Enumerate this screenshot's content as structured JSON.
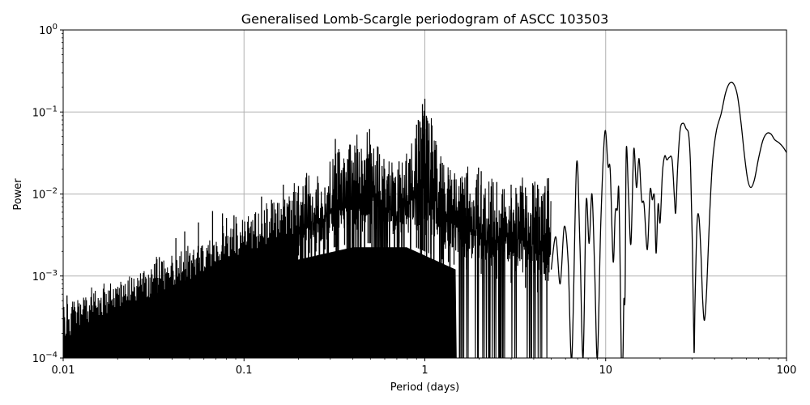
{
  "chart_data": {
    "type": "line",
    "title": "Generalised Lomb-Scargle periodogram of ASCC 103503",
    "xlabel": "Period (days)",
    "ylabel": "Power",
    "xscale": "log",
    "yscale": "log",
    "xlim": [
      0.01,
      100
    ],
    "ylim": [
      0.0001,
      1
    ],
    "grid": true,
    "legend": null,
    "line_color": "#000000",
    "grid_color": "#b0b0b0",
    "x_ticks": [
      {
        "value": 0.01,
        "label": "0.01"
      },
      {
        "value": 0.1,
        "label": "0.1"
      },
      {
        "value": 1,
        "label": "1"
      },
      {
        "value": 10,
        "label": "10"
      },
      {
        "value": 100,
        "label": "100"
      }
    ],
    "y_ticks": [
      {
        "value": 0.0001,
        "base": "10",
        "exp": "−4"
      },
      {
        "value": 0.001,
        "base": "10",
        "exp": "−3"
      },
      {
        "value": 0.01,
        "base": "10",
        "exp": "−2"
      },
      {
        "value": 0.1,
        "base": "10",
        "exp": "−1"
      },
      {
        "value": 1,
        "base": "10",
        "exp": "0"
      }
    ],
    "notable_peaks": [
      {
        "period": 0.0105,
        "power": 0.00058
      },
      {
        "period": 0.033,
        "power": 0.0016
      },
      {
        "period": 0.063,
        "power": 0.0045
      },
      {
        "period": 0.16,
        "power": 0.013
      },
      {
        "period": 0.2,
        "power": 0.0125
      },
      {
        "period": 0.25,
        "power": 0.0105
      },
      {
        "period": 0.33,
        "power": 0.047
      },
      {
        "period": 0.5,
        "power": 0.062
      },
      {
        "period": 0.97,
        "power": 0.12
      },
      {
        "period": 1.0,
        "power": 0.145
      },
      {
        "period": 1.98,
        "power": 0.02
      },
      {
        "period": 6.9,
        "power": 0.023
      },
      {
        "period": 9.9,
        "power": 0.057
      },
      {
        "period": 13.0,
        "power": 0.034
      },
      {
        "period": 15.2,
        "power": 0.036
      },
      {
        "period": 22.0,
        "power": 0.029
      },
      {
        "period": 23.5,
        "power": 0.029
      },
      {
        "period": 27.0,
        "power": 0.073
      },
      {
        "period": 32.5,
        "power": 0.0055
      },
      {
        "period": 50.0,
        "power": 0.23
      },
      {
        "period": 80.0,
        "power": 0.055
      },
      {
        "period": 100.0,
        "power": 0.032
      }
    ],
    "notable_minima": [
      {
        "period": 31.0,
        "power": 0.0001
      },
      {
        "period": 35.0,
        "power": 0.00029
      },
      {
        "period": 64.0,
        "power": 0.012
      },
      {
        "period": 19.5,
        "power": 0.0021
      }
    ],
    "envelope": {
      "description": "dense noisy periodogram for periods below ~5 days; upper envelope log10(power) vs log10(period)",
      "points": [
        [
          -2.0,
          -3.35
        ],
        [
          -1.7,
          -3.05
        ],
        [
          -1.5,
          -2.85
        ],
        [
          -1.2,
          -2.55
        ],
        [
          -1.0,
          -2.3
        ],
        [
          -0.8,
          -2.05
        ],
        [
          -0.6,
          -1.8
        ],
        [
          -0.48,
          -1.45
        ],
        [
          -0.3,
          -1.3
        ],
        [
          -0.15,
          -1.7
        ],
        [
          0.0,
          -0.95
        ],
        [
          0.15,
          -1.75
        ],
        [
          0.3,
          -1.75
        ],
        [
          0.5,
          -1.85
        ],
        [
          0.7,
          -1.8
        ]
      ],
      "floor": [
        [
          -2.0,
          -4.0
        ],
        [
          -1.5,
          -3.45
        ],
        [
          -1.0,
          -3.0
        ],
        [
          -0.7,
          -2.75
        ],
        [
          -0.4,
          -2.6
        ],
        [
          -0.1,
          -2.6
        ],
        [
          0.2,
          -2.9
        ],
        [
          0.5,
          -3.1
        ],
        [
          0.75,
          -3.3
        ]
      ]
    },
    "smooth_curve": [
      [
        5.0,
        0.0012
      ],
      [
        5.3,
        0.003
      ],
      [
        5.6,
        0.0008
      ],
      [
        5.9,
        0.004
      ],
      [
        6.2,
        0.0015
      ],
      [
        6.5,
        0.0001
      ],
      [
        6.9,
        0.023
      ],
      [
        7.2,
        0.0025
      ],
      [
        7.5,
        0.0001
      ],
      [
        7.8,
        0.008
      ],
      [
        8.1,
        0.0025
      ],
      [
        8.4,
        0.01
      ],
      [
        8.7,
        0.0011
      ],
      [
        9.0,
        0.0001
      ],
      [
        9.4,
        0.0045
      ],
      [
        9.9,
        0.057
      ],
      [
        10.3,
        0.022
      ],
      [
        10.6,
        0.019
      ],
      [
        11.0,
        0.0015
      ],
      [
        11.3,
        0.006
      ],
      [
        11.6,
        0.0065
      ],
      [
        11.8,
        0.012
      ],
      [
        12.0,
        0.0018
      ],
      [
        12.2,
        0.0001
      ],
      [
        12.45,
        0.0001
      ],
      [
        12.6,
        0.0005
      ],
      [
        12.8,
        0.0006
      ],
      [
        13.0,
        0.035
      ],
      [
        13.4,
        0.0085
      ],
      [
        13.8,
        0.0025
      ],
      [
        14.3,
        0.035
      ],
      [
        14.8,
        0.012
      ],
      [
        15.3,
        0.027
      ],
      [
        15.8,
        0.0085
      ],
      [
        16.3,
        0.0075
      ],
      [
        17.0,
        0.0021
      ],
      [
        17.6,
        0.011
      ],
      [
        18.1,
        0.0085
      ],
      [
        18.6,
        0.0092
      ],
      [
        19.0,
        0.0019
      ],
      [
        19.5,
        0.0075
      ],
      [
        20.0,
        0.0045
      ],
      [
        20.6,
        0.018
      ],
      [
        21.2,
        0.029
      ],
      [
        21.8,
        0.026
      ],
      [
        22.5,
        0.028
      ],
      [
        23.3,
        0.026
      ],
      [
        24.0,
        0.009
      ],
      [
        24.4,
        0.006
      ],
      [
        25.0,
        0.021
      ],
      [
        25.8,
        0.06
      ],
      [
        26.8,
        0.073
      ],
      [
        27.8,
        0.063
      ],
      [
        28.8,
        0.052
      ],
      [
        29.5,
        0.02
      ],
      [
        30.2,
        0.002
      ],
      [
        30.8,
        0.00012
      ],
      [
        31.2,
        0.0005
      ],
      [
        32.0,
        0.0043
      ],
      [
        32.8,
        0.0052
      ],
      [
        33.6,
        0.002
      ],
      [
        34.4,
        0.0005
      ],
      [
        35.2,
        0.00029
      ],
      [
        36.2,
        0.0007
      ],
      [
        37.5,
        0.005
      ],
      [
        39.0,
        0.025
      ],
      [
        41.0,
        0.06
      ],
      [
        43.5,
        0.095
      ],
      [
        46.0,
        0.17
      ],
      [
        48.5,
        0.225
      ],
      [
        51.0,
        0.22
      ],
      [
        53.5,
        0.16
      ],
      [
        56.0,
        0.075
      ],
      [
        58.5,
        0.03
      ],
      [
        61.0,
        0.015
      ],
      [
        63.5,
        0.012
      ],
      [
        66.5,
        0.015
      ],
      [
        70.0,
        0.027
      ],
      [
        74.0,
        0.045
      ],
      [
        78.0,
        0.055
      ],
      [
        82.0,
        0.054
      ],
      [
        86.0,
        0.046
      ],
      [
        91.0,
        0.042
      ],
      [
        96.0,
        0.037
      ],
      [
        100.0,
        0.032
      ]
    ],
    "noise_peaks": [
      [
        0.32,
        0.047
      ],
      [
        0.33,
        0.032
      ],
      [
        0.315,
        0.011
      ],
      [
        0.495,
        0.062
      ],
      [
        0.5,
        0.04
      ],
      [
        0.485,
        0.02
      ],
      [
        0.97,
        0.125
      ],
      [
        0.985,
        0.09
      ],
      [
        1.0,
        0.145
      ],
      [
        0.94,
        0.075
      ],
      [
        0.92,
        0.08
      ],
      [
        1.02,
        0.09
      ],
      [
        1.05,
        0.045
      ],
      [
        0.9,
        0.07
      ],
      [
        1.08,
        0.032
      ],
      [
        0.165,
        0.013
      ],
      [
        0.2,
        0.0125
      ],
      [
        0.25,
        0.0105
      ],
      [
        0.23,
        0.0068
      ],
      [
        0.28,
        0.012
      ],
      [
        0.125,
        0.0093
      ],
      [
        0.142,
        0.0085
      ],
      [
        0.067,
        0.0062
      ],
      [
        0.076,
        0.0058
      ],
      [
        0.056,
        0.0045
      ],
      [
        0.08,
        0.0051
      ],
      [
        0.088,
        0.0055
      ],
      [
        0.047,
        0.0035
      ],
      [
        0.042,
        0.0029
      ],
      [
        0.033,
        0.0016
      ],
      [
        0.034,
        0.0017
      ],
      [
        0.0105,
        0.00058
      ],
      [
        1.98,
        0.021
      ],
      [
        2.05,
        0.019
      ],
      [
        1.45,
        0.015
      ],
      [
        1.7,
        0.018
      ],
      [
        2.5,
        0.014
      ],
      [
        3.0,
        0.013
      ],
      [
        3.6,
        0.012
      ],
      [
        4.2,
        0.013
      ],
      [
        0.58,
        0.022
      ],
      [
        0.72,
        0.025
      ],
      [
        0.62,
        0.0165
      ],
      [
        1.25,
        0.024
      ],
      [
        1.35,
        0.017
      ],
      [
        0.4,
        0.018
      ],
      [
        0.36,
        0.016
      ]
    ]
  }
}
